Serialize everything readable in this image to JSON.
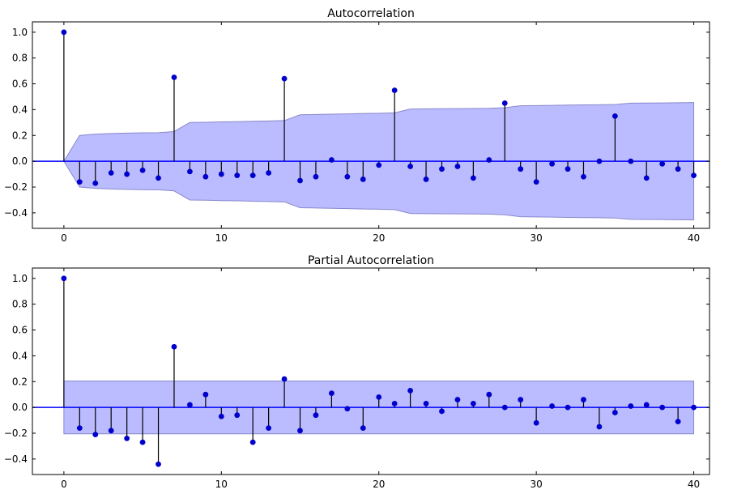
{
  "colors": {
    "marker": "#0000cc",
    "stem": "#000000",
    "baseline": "#0000ff",
    "confidence_fill": "#bbbbff",
    "confidence_edge": "#8888cc",
    "axes_edge": "#000000"
  },
  "chart_data": [
    {
      "type": "stem",
      "title": "Autocorrelation",
      "xlim": [
        -2,
        41
      ],
      "ylim": [
        -0.52,
        1.08
      ],
      "xticks": [
        0,
        10,
        20,
        30,
        40
      ],
      "xtick_labels": [
        "0",
        "10",
        "20",
        "30",
        "40"
      ],
      "yticks": [
        1.0,
        0.8,
        0.6,
        0.4,
        0.2,
        0.0,
        -0.2,
        -0.4
      ],
      "ytick_labels": [
        "1.0",
        "0.8",
        "0.6",
        "0.4",
        "0.2",
        "0.0",
        "−0.2",
        "−0.4"
      ],
      "grid": false,
      "x": [
        0,
        1,
        2,
        3,
        4,
        5,
        6,
        7,
        8,
        9,
        10,
        11,
        12,
        13,
        14,
        15,
        16,
        17,
        18,
        19,
        20,
        21,
        22,
        23,
        24,
        25,
        26,
        27,
        28,
        29,
        30,
        31,
        32,
        33,
        34,
        35,
        36,
        37,
        38,
        39,
        40
      ],
      "values": [
        1.0,
        -0.16,
        -0.17,
        -0.09,
        -0.1,
        -0.07,
        -0.13,
        0.65,
        -0.08,
        -0.12,
        -0.1,
        -0.11,
        -0.11,
        -0.09,
        0.64,
        -0.15,
        -0.12,
        0.01,
        -0.12,
        -0.14,
        -0.03,
        0.55,
        -0.04,
        -0.14,
        -0.06,
        -0.04,
        -0.13,
        0.01,
        0.45,
        -0.06,
        -0.16,
        -0.02,
        -0.06,
        -0.12,
        0.0,
        0.35,
        0.0,
        -0.13,
        -0.02,
        -0.06,
        -0.11
      ],
      "confidence_band": {
        "x": [
          0,
          1,
          2,
          3,
          4,
          5,
          6,
          7,
          8,
          9,
          10,
          11,
          12,
          13,
          14,
          15,
          16,
          17,
          18,
          19,
          20,
          21,
          22,
          23,
          24,
          25,
          26,
          27,
          28,
          29,
          30,
          31,
          32,
          33,
          34,
          35,
          36,
          37,
          38,
          39,
          40
        ],
        "upper": [
          0,
          0.2,
          0.21,
          0.215,
          0.218,
          0.22,
          0.221,
          0.23,
          0.3,
          0.302,
          0.305,
          0.307,
          0.31,
          0.312,
          0.315,
          0.36,
          0.362,
          0.365,
          0.367,
          0.37,
          0.372,
          0.375,
          0.405,
          0.406,
          0.407,
          0.408,
          0.409,
          0.41,
          0.415,
          0.43,
          0.431,
          0.433,
          0.435,
          0.437,
          0.438,
          0.44,
          0.45,
          0.451,
          0.452,
          0.453,
          0.455
        ]
      }
    },
    {
      "type": "stem",
      "title": "Partial Autocorrelation",
      "xlim": [
        -2,
        41
      ],
      "ylim": [
        -0.52,
        1.08
      ],
      "xticks": [
        0,
        10,
        20,
        30,
        40
      ],
      "xtick_labels": [
        "0",
        "10",
        "20",
        "30",
        "40"
      ],
      "yticks": [
        1.0,
        0.8,
        0.6,
        0.4,
        0.2,
        0.0,
        -0.2,
        -0.4
      ],
      "ytick_labels": [
        "1.0",
        "0.8",
        "0.6",
        "0.4",
        "0.2",
        "0.0",
        "−0.2",
        "−0.4"
      ],
      "grid": false,
      "x": [
        0,
        1,
        2,
        3,
        4,
        5,
        6,
        7,
        8,
        9,
        10,
        11,
        12,
        13,
        14,
        15,
        16,
        17,
        18,
        19,
        20,
        21,
        22,
        23,
        24,
        25,
        26,
        27,
        28,
        29,
        30,
        31,
        32,
        33,
        34,
        35,
        36,
        37,
        38,
        39,
        40
      ],
      "values": [
        1.0,
        -0.16,
        -0.21,
        -0.18,
        -0.24,
        -0.27,
        -0.44,
        0.47,
        0.02,
        0.1,
        -0.07,
        -0.06,
        -0.27,
        -0.16,
        0.22,
        -0.18,
        -0.06,
        0.11,
        -0.01,
        -0.16,
        0.08,
        0.03,
        0.13,
        0.03,
        -0.03,
        0.06,
        0.03,
        0.1,
        0.0,
        0.06,
        -0.12,
        0.01,
        0.0,
        0.06,
        -0.15,
        -0.04,
        0.01,
        0.02,
        0.0,
        -0.11,
        0.0
      ],
      "confidence_band": {
        "x": [
          0,
          40
        ],
        "upper": [
          0.205,
          0.205
        ]
      }
    }
  ]
}
